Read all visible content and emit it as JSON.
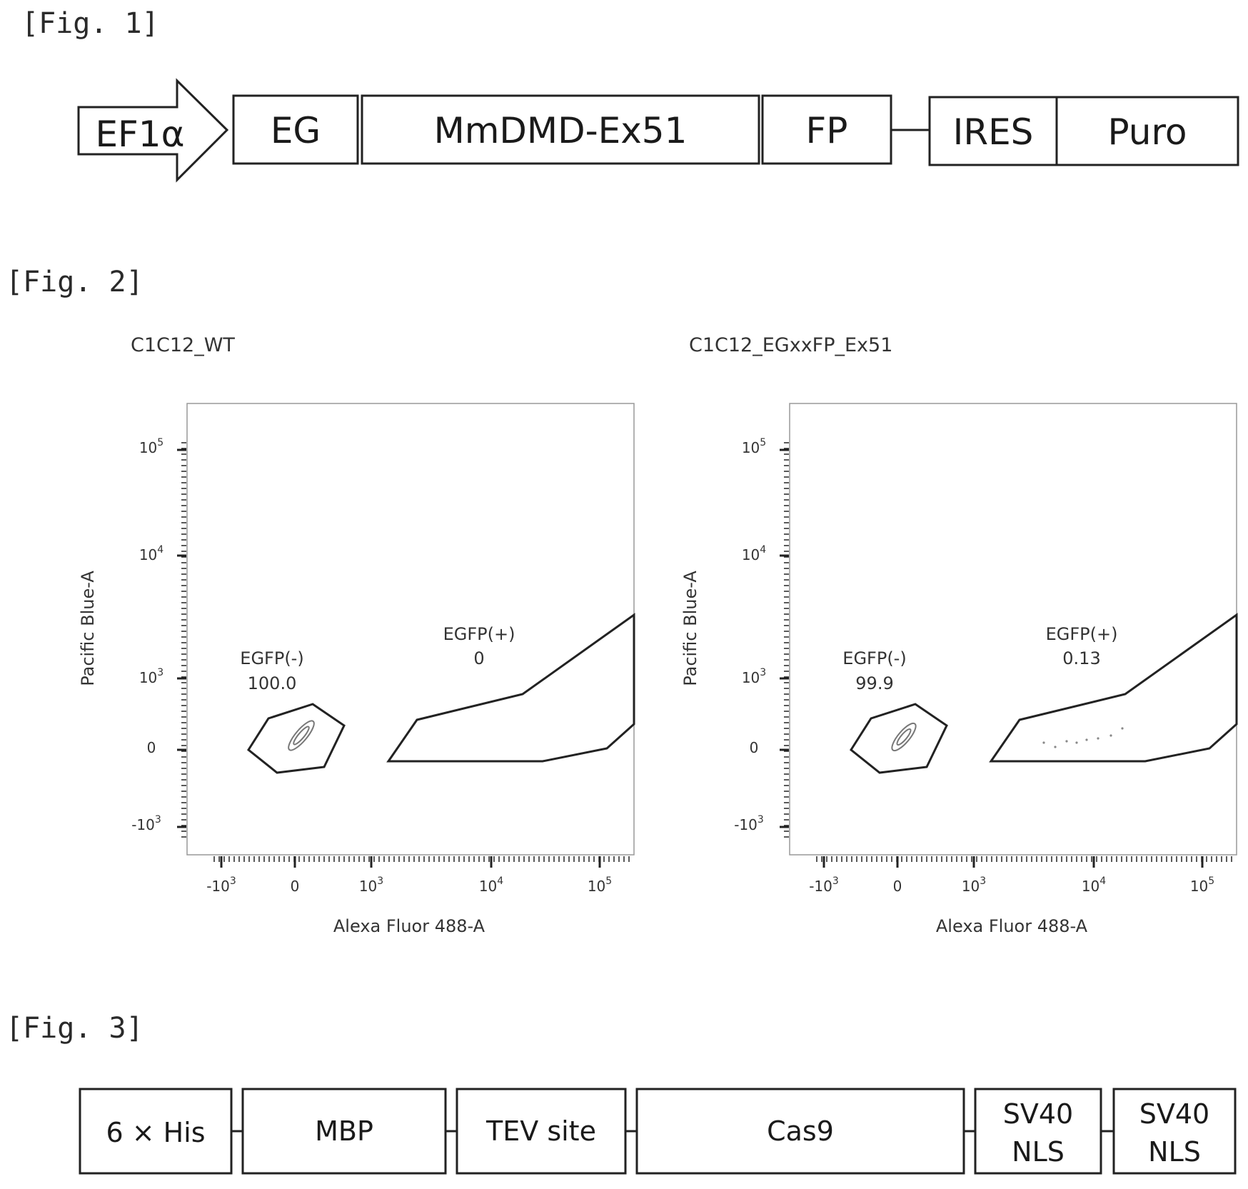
{
  "fig1": {
    "label": "[Fig. 1]",
    "promoter": "EF1α",
    "boxes": [
      "EG",
      "MmDMD-Ex51",
      "FP",
      "IRES",
      "Puro"
    ]
  },
  "fig2": {
    "label": "[Fig. 2]",
    "chart_data": [
      {
        "type": "scatter",
        "title": "C1C12_WT",
        "xlabel": "Alexa Fluor 488-A",
        "ylabel": "Pacific Blue-A",
        "x_ticks": [
          "-10^3",
          "0",
          "10^3",
          "10^4",
          "10^5"
        ],
        "y_ticks": [
          "10^5",
          "10^4",
          "10^3",
          "0",
          "-10^3"
        ],
        "gates": [
          {
            "name": "EGFP(-)",
            "value": "100.0"
          },
          {
            "name": "EGFP(+)",
            "value": "0"
          }
        ]
      },
      {
        "type": "scatter",
        "title": "C1C12_EGxxFP_Ex51",
        "xlabel": "Alexa Fluor 488-A",
        "ylabel": "Pacific Blue-A",
        "x_ticks": [
          "-10^3",
          "0",
          "10^3",
          "10^4",
          "10^5"
        ],
        "y_ticks": [
          "10^5",
          "10^4",
          "10^3",
          "0",
          "-10^3"
        ],
        "gates": [
          {
            "name": "EGFP(-)",
            "value": "99.9"
          },
          {
            "name": "EGFP(+)",
            "value": "0.13"
          }
        ]
      }
    ]
  },
  "fig3": {
    "label": "[Fig. 3]",
    "boxes": [
      {
        "lines": [
          "6 × His"
        ]
      },
      {
        "lines": [
          "MBP"
        ]
      },
      {
        "lines": [
          "TEV site"
        ]
      },
      {
        "lines": [
          "Cas9"
        ]
      },
      {
        "lines": [
          "SV40",
          "NLS"
        ]
      },
      {
        "lines": [
          "SV40",
          "NLS"
        ]
      }
    ]
  }
}
